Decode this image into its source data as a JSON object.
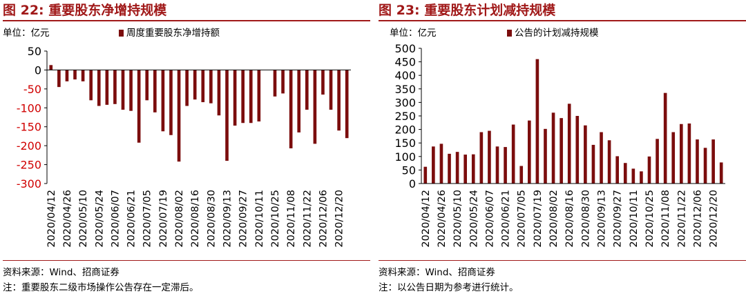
{
  "colors": {
    "bar": "#7b0d0d",
    "title": "#a01818",
    "neg_tick": "#d00000"
  },
  "left": {
    "title": "图 22:  重要股东净增持规模",
    "source": "资料来源：Wind、招商证券",
    "note": "注：重要股东二级市场操作公告存在一定滞后。",
    "chart_data": {
      "type": "bar",
      "unit_label": "单位：亿元",
      "legend": "周度重要股东净增持额",
      "legend_position": "top",
      "ylim": [
        -300,
        50
      ],
      "yticks": [
        50,
        0,
        -50,
        -100,
        -150,
        -200,
        -250,
        -300
      ],
      "grid": false,
      "xtick_labels": [
        "2020/04/12",
        "2020/04/26",
        "2020/05/10",
        "2020/05/24",
        "2020/06/07",
        "2020/06/21",
        "2020/07/05",
        "2020/07/19",
        "2020/08/02",
        "2020/08/16",
        "2020/08/30",
        "2020/09/13",
        "2020/09/27",
        "2020/10/11",
        "2020/10/25",
        "2020/11/08",
        "2020/11/22",
        "2020/12/06",
        "2020/12/20"
      ],
      "series": [
        {
          "name": "周度重要股东净增持额",
          "values": [
            13,
            -45,
            -30,
            -25,
            -30,
            -80,
            -95,
            -92,
            -90,
            -105,
            -108,
            -192,
            -80,
            -112,
            -162,
            -172,
            -242,
            -95,
            -78,
            -85,
            -88,
            -120,
            -240,
            -147,
            -140,
            -140,
            -136,
            null,
            -70,
            -62,
            -207,
            -165,
            -105,
            -195,
            -65,
            -105,
            -160,
            -180
          ]
        }
      ]
    }
  },
  "right": {
    "title": "图 23:  重要股东计划减持规模",
    "source": "资料来源：Wind、招商证券",
    "note": "注：以公告日期为参考进行统计。",
    "chart_data": {
      "type": "bar",
      "unit_label": "单位：亿元",
      "legend": "公告的计划减持规模",
      "legend_position": "top",
      "ylim": [
        0,
        500
      ],
      "yticks": [
        500,
        450,
        400,
        350,
        300,
        250,
        200,
        150,
        100,
        50,
        0
      ],
      "grid": false,
      "xtick_labels": [
        "2020/04/12",
        "2020/04/26",
        "2020/05/10",
        "2020/05/24",
        "2020/06/07",
        "2020/06/21",
        "2020/07/05",
        "2020/07/19",
        "2020/08/02",
        "2020/08/16",
        "2020/08/30",
        "2020/09/13",
        "2020/09/27",
        "2020/10/11",
        "2020/10/25",
        "2020/11/08",
        "2020/11/22",
        "2020/12/06",
        "2020/12/20"
      ],
      "series": [
        {
          "name": "公告的计划减持规模",
          "values": [
            62,
            137,
            147,
            110,
            117,
            107,
            108,
            190,
            195,
            137,
            135,
            218,
            65,
            233,
            460,
            202,
            262,
            242,
            295,
            250,
            215,
            143,
            190,
            160,
            101,
            76,
            55,
            45,
            100,
            165,
            335,
            190,
            220,
            222,
            163,
            132,
            163,
            78
          ]
        }
      ]
    }
  }
}
